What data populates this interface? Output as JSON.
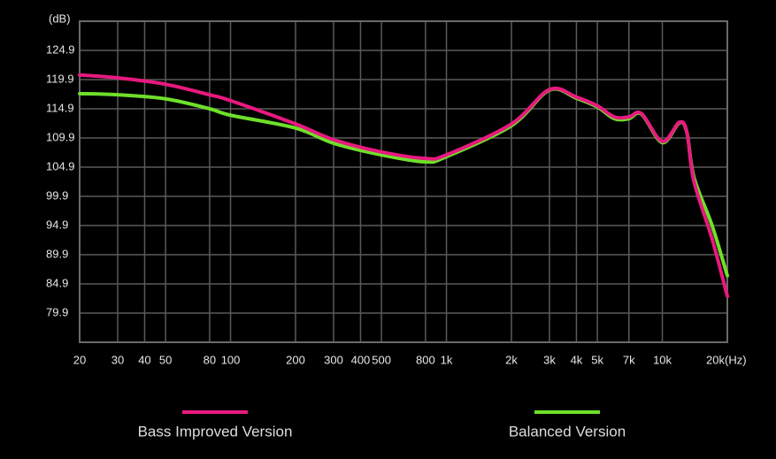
{
  "chart_data": {
    "type": "line",
    "y_label": "(dB)",
    "x_label": "(Hz)",
    "log_x": true,
    "grid": true,
    "xlim": [
      20,
      20000
    ],
    "ylim": [
      74.9,
      129.9
    ],
    "yticks": [
      79.9,
      84.9,
      89.9,
      94.9,
      99.9,
      104.9,
      109.9,
      114.9,
      119.9,
      124.9
    ],
    "xticks": [
      20,
      30,
      40,
      50,
      80,
      100,
      200,
      300,
      400,
      500,
      800,
      {
        "value": 1000,
        "label": "1k"
      },
      {
        "value": 2000,
        "label": "2k"
      },
      {
        "value": 3000,
        "label": "3k"
      },
      {
        "value": 4000,
        "label": "4k"
      },
      {
        "value": 5000,
        "label": "5k"
      },
      {
        "value": 7000,
        "label": "7k"
      },
      {
        "value": 10000,
        "label": "10k"
      },
      {
        "value": 20000,
        "label": "20k"
      }
    ],
    "x": [
      20,
      30,
      50,
      80,
      100,
      200,
      300,
      500,
      800,
      1000,
      2000,
      3000,
      4000,
      5000,
      6000,
      7000,
      8000,
      10000,
      12000,
      13000,
      14000,
      17000,
      20000
    ],
    "series": [
      {
        "name": "Balanced Version",
        "color": "#6ee02a",
        "values": [
          117.5,
          117.3,
          116.6,
          114.9,
          113.8,
          111.6,
          109.0,
          107.0,
          105.8,
          106.7,
          112.0,
          118.1,
          116.7,
          115.2,
          113.2,
          113.2,
          114.0,
          109.1,
          112.5,
          110.8,
          103.2,
          94.9,
          86.3
        ]
      },
      {
        "name": "Bass Improved Version",
        "color": "#e8197f",
        "values": [
          120.7,
          120.2,
          119.1,
          117.3,
          116.3,
          112.3,
          109.6,
          107.5,
          106.4,
          107.0,
          112.3,
          118.2,
          116.9,
          115.4,
          113.5,
          113.5,
          114.1,
          109.3,
          112.6,
          110.8,
          102.5,
          92.6,
          82.8
        ]
      }
    ]
  }
}
